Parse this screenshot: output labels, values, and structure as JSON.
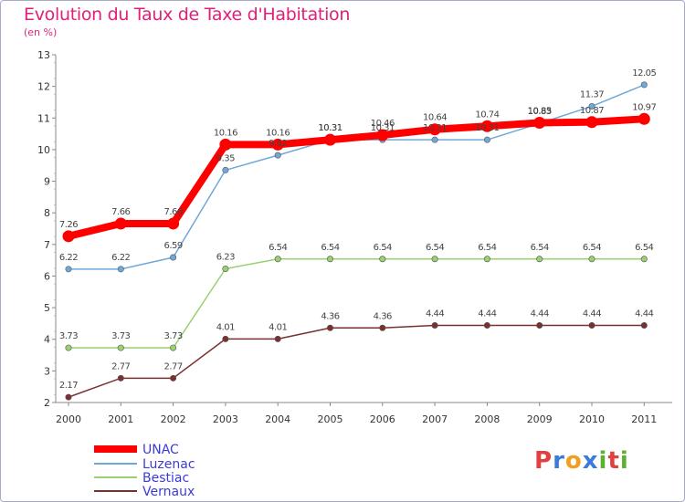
{
  "header": {
    "title": "Evolution du Taux de Taxe d'Habitation",
    "unit": "(en %)"
  },
  "logo": {
    "text": "Proxiti",
    "letters": [
      "P",
      "r",
      "o",
      "x",
      "i",
      "t",
      "i"
    ],
    "colors": [
      "#e04040",
      "#3b7bd9",
      "#f0a020",
      "#3b7bd9",
      "#60b030",
      "#e04040",
      "#60b030"
    ]
  },
  "chart_data": {
    "type": "line",
    "title": "Evolution du Taux de Taxe d'Habitation",
    "ylabel": "(en %)",
    "xlabel": "",
    "x": [
      "2000",
      "2001",
      "2002",
      "2003",
      "2004",
      "2005",
      "2006",
      "2007",
      "2008",
      "2009",
      "2010",
      "2011"
    ],
    "ylim": [
      2,
      13
    ],
    "yticks": [
      "2",
      "3",
      "4",
      "5",
      "6",
      "7",
      "8",
      "9",
      "10",
      "11",
      "12",
      "13"
    ],
    "grid": false,
    "legend_position": "bottom-left",
    "series": [
      {
        "name": "UNAC",
        "color": "#ff0000",
        "values": [
          7.26,
          7.66,
          7.66,
          10.16,
          10.16,
          10.31,
          10.46,
          10.64,
          10.74,
          10.85,
          10.87,
          10.97
        ],
        "labels": [
          "7.26",
          "7.66",
          "7.66",
          "10.16",
          "10.16",
          "10.31",
          "10.46",
          "10.64",
          "10.74",
          "10.85",
          "10.87",
          "10.97"
        ]
      },
      {
        "name": "Luzenac",
        "color": "#6fa8d8",
        "values": [
          6.22,
          6.22,
          6.59,
          9.35,
          9.82,
          10.31,
          10.31,
          10.31,
          10.31,
          10.83,
          11.37,
          12.05
        ],
        "labels": [
          "6.22",
          "6.22",
          "6.59",
          "9.35",
          "9.82",
          "10.31",
          "10.31",
          "10.31",
          "10.31",
          "10.83",
          "11.37",
          "12.05"
        ]
      },
      {
        "name": "Bestiac",
        "color": "#99d070",
        "values": [
          3.73,
          3.73,
          3.73,
          6.23,
          6.54,
          6.54,
          6.54,
          6.54,
          6.54,
          6.54,
          6.54,
          6.54
        ],
        "labels": [
          "3.73",
          "3.73",
          "3.73",
          "6.23",
          "6.54",
          "6.54",
          "6.54",
          "6.54",
          "6.54",
          "6.54",
          "6.54",
          "6.54"
        ]
      },
      {
        "name": "Vernaux",
        "color": "#7a3030",
        "values": [
          2.17,
          2.77,
          2.77,
          4.01,
          4.01,
          4.36,
          4.36,
          4.44,
          4.44,
          4.44,
          4.44,
          4.44
        ],
        "labels": [
          "2.17",
          "2.77",
          "2.77",
          "4.01",
          "4.01",
          "4.36",
          "4.36",
          "4.44",
          "4.44",
          "4.44",
          "4.44",
          "4.44"
        ]
      }
    ]
  }
}
